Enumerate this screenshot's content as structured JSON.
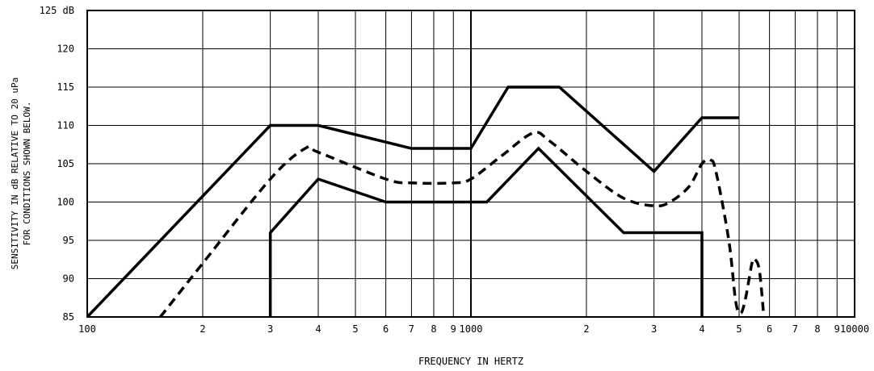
{
  "chart_data": {
    "type": "line",
    "title": "",
    "xlabel": "FREQUENCY IN HERTZ",
    "ylabel_lines": [
      "SENSITIVITY IN dB RELATIVE TO 20 uPa",
      "FOR CONDITIONS SHOWN BELOW."
    ],
    "x_scale": "log",
    "xlim": [
      100,
      10000
    ],
    "ylim": [
      85,
      125
    ],
    "grid": true,
    "y_ticks": [
      {
        "value": 85,
        "label": "85"
      },
      {
        "value": 90,
        "label": "90"
      },
      {
        "value": 95,
        "label": "95"
      },
      {
        "value": 100,
        "label": "100"
      },
      {
        "value": 105,
        "label": "105"
      },
      {
        "value": 110,
        "label": "110"
      },
      {
        "value": 115,
        "label": "115"
      },
      {
        "value": 120,
        "label": "120"
      },
      {
        "value": 125,
        "label": "125 dB"
      }
    ],
    "x_ticks": [
      {
        "value": 100,
        "label": "100"
      },
      {
        "value": 200,
        "label": "2"
      },
      {
        "value": 300,
        "label": "3"
      },
      {
        "value": 400,
        "label": "4"
      },
      {
        "value": 500,
        "label": "5"
      },
      {
        "value": 600,
        "label": "6"
      },
      {
        "value": 700,
        "label": "7"
      },
      {
        "value": 800,
        "label": "8"
      },
      {
        "value": 900,
        "label": "9"
      },
      {
        "value": 1000,
        "label": "1000"
      },
      {
        "value": 2000,
        "label": "2"
      },
      {
        "value": 3000,
        "label": "3"
      },
      {
        "value": 4000,
        "label": "4"
      },
      {
        "value": 5000,
        "label": "5"
      },
      {
        "value": 6000,
        "label": "6"
      },
      {
        "value": 7000,
        "label": "7"
      },
      {
        "value": 8000,
        "label": "8"
      },
      {
        "value": 9000,
        "label": "9"
      },
      {
        "value": 10000,
        "label": "10000"
      }
    ],
    "series": [
      {
        "style": "solid",
        "points": [
          [
            100,
            85
          ],
          [
            300,
            110
          ],
          [
            400,
            110
          ],
          [
            700,
            107
          ],
          [
            1000,
            107
          ],
          [
            1250,
            115
          ],
          [
            1700,
            115
          ],
          [
            3000,
            104
          ],
          [
            4000,
            111
          ],
          [
            5000,
            111
          ]
        ]
      },
      {
        "style": "dashed",
        "points": [
          [
            155,
            85
          ],
          [
            200,
            92
          ],
          [
            300,
            103
          ],
          [
            370,
            107
          ],
          [
            400,
            106.5
          ],
          [
            600,
            103
          ],
          [
            700,
            102.5
          ],
          [
            900,
            102.5
          ],
          [
            1000,
            103
          ],
          [
            1200,
            106
          ],
          [
            1450,
            109
          ],
          [
            1600,
            108
          ],
          [
            2000,
            104
          ],
          [
            2500,
            100.5
          ],
          [
            3000,
            99.5
          ],
          [
            3300,
            100
          ],
          [
            3700,
            102
          ],
          [
            4000,
            105
          ],
          [
            4200,
            105.5
          ],
          [
            4350,
            104
          ],
          [
            4700,
            95
          ],
          [
            4900,
            87
          ],
          [
            5050,
            85.5
          ],
          [
            5200,
            87.5
          ],
          [
            5400,
            92
          ],
          [
            5500,
            92.5
          ],
          [
            5650,
            91
          ],
          [
            5800,
            85
          ]
        ]
      },
      {
        "style": "solid",
        "points": [
          [
            300,
            85
          ],
          [
            300,
            96
          ],
          [
            400,
            103
          ],
          [
            600,
            100
          ],
          [
            1100,
            100
          ],
          [
            1500,
            107
          ],
          [
            2500,
            96
          ],
          [
            4000,
            96
          ],
          [
            4000,
            85
          ]
        ]
      }
    ]
  }
}
